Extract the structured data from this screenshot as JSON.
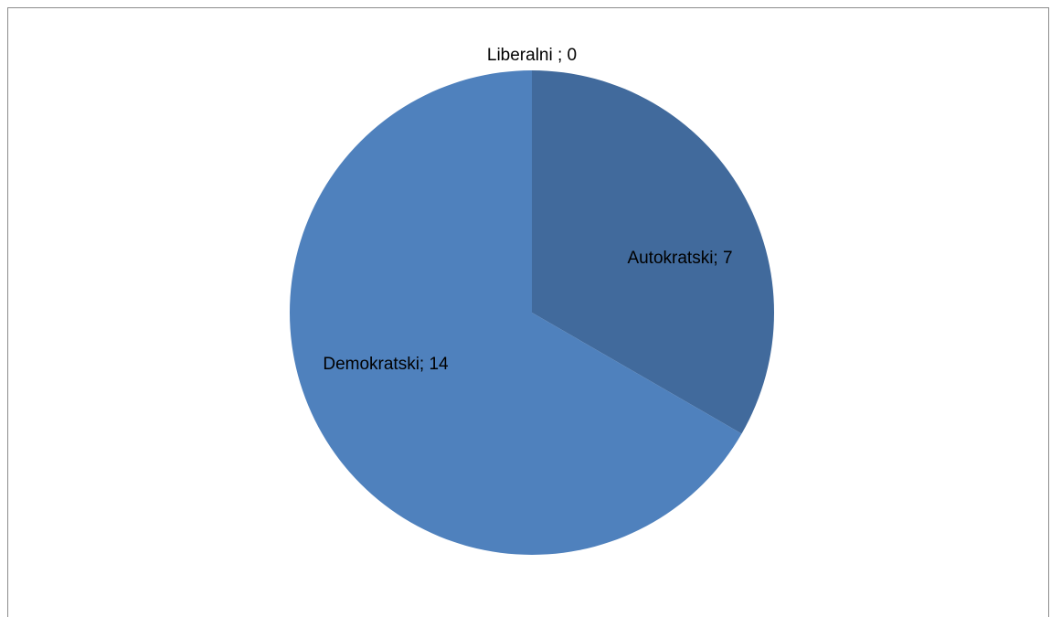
{
  "chart_data": {
    "type": "pie",
    "slices": [
      {
        "label": "Liberalni",
        "value": 0,
        "display": "Liberalni ; 0",
        "color": "#4f81bd"
      },
      {
        "label": "Autokratski",
        "value": 7,
        "display": "Autokratski; 7",
        "color": "#416a9c"
      },
      {
        "label": "Demokratski",
        "value": 14,
        "display": "Demokratski; 14",
        "color": "#4f81bd"
      }
    ],
    "start_angle_deg": 0,
    "direction": "clockwise",
    "legend": "none"
  }
}
